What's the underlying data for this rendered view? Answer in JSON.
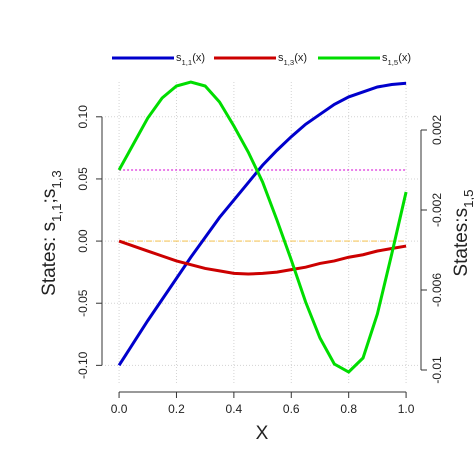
{
  "chart_data": {
    "type": "line",
    "xlabel": "X",
    "ylabel": "States: s1,1;s1,3",
    "y2label": "States:s1,5",
    "x": [
      0,
      0.05,
      0.1,
      0.15,
      0.2,
      0.25,
      0.3,
      0.35,
      0.4,
      0.45,
      0.5,
      0.55,
      0.6,
      0.65,
      0.7,
      0.75,
      0.8,
      0.85,
      0.9,
      0.95,
      1.0
    ],
    "series": [
      {
        "name": "s1,1(x)",
        "color": "#0000cc",
        "values": [
          -0.1,
          -0.082,
          -0.064,
          -0.047,
          -0.03,
          -0.013,
          0.003,
          0.019,
          0.033,
          0.047,
          0.061,
          0.073,
          0.084,
          0.094,
          0.102,
          0.11,
          0.116,
          0.12,
          0.124,
          0.126,
          0.127
        ]
      },
      {
        "name": "s1,3(x)",
        "color": "#cc0000",
        "values": [
          0,
          -0.004,
          -0.008,
          -0.012,
          -0.016,
          -0.019,
          -0.022,
          -0.024,
          -0.026,
          -0.0265,
          -0.026,
          -0.025,
          -0.023,
          -0.021,
          -0.018,
          -0.016,
          -0.013,
          -0.011,
          -0.008,
          -0.006,
          -0.004
        ]
      },
      {
        "name": "s1,5(x)",
        "color": "#00dd00",
        "axis": "y2",
        "values": [
          0,
          0.0013,
          0.0026,
          0.0036,
          0.0042,
          0.0044,
          0.0042,
          0.0034,
          0.0022,
          0.0009,
          -0.0006,
          -0.0025,
          -0.0045,
          -0.0066,
          -0.0084,
          -0.0097,
          -0.0101,
          -0.0094,
          -0.0072,
          -0.0042,
          -0.0011
        ]
      }
    ],
    "hlines": [
      {
        "value": 0,
        "axis": "y",
        "color": "#f5c860",
        "dash": "dashed"
      },
      {
        "value": 0,
        "axis": "y2",
        "color": "#dd33dd",
        "dash": "dotted"
      }
    ],
    "xlim": [
      -0.049,
      1.045
    ],
    "xticks": [
      {
        "value": 0,
        "label": "0.0"
      },
      {
        "value": 0.2,
        "label": "0.2"
      },
      {
        "value": 0.4,
        "label": "0.4"
      },
      {
        "value": 0.6,
        "label": "0.6"
      },
      {
        "value": 0.8,
        "label": "0.8"
      },
      {
        "value": 1.0,
        "label": "1.0"
      }
    ],
    "ylim": [
      -0.115,
      0.128
    ],
    "yticks": [
      {
        "value": -0.1,
        "label": "-0.10"
      },
      {
        "value": -0.05,
        "label": "-0.05"
      },
      {
        "value": 0,
        "label": "0.00"
      },
      {
        "value": 0.05,
        "label": "0.05"
      },
      {
        "value": 0.1,
        "label": "0.10"
      }
    ],
    "y2lim": [
      -0.0107,
      0.0044
    ],
    "y2ticks": [
      -0.01,
      -0.006,
      -0.002,
      0.002
    ],
    "grid": true,
    "legend": "top"
  }
}
